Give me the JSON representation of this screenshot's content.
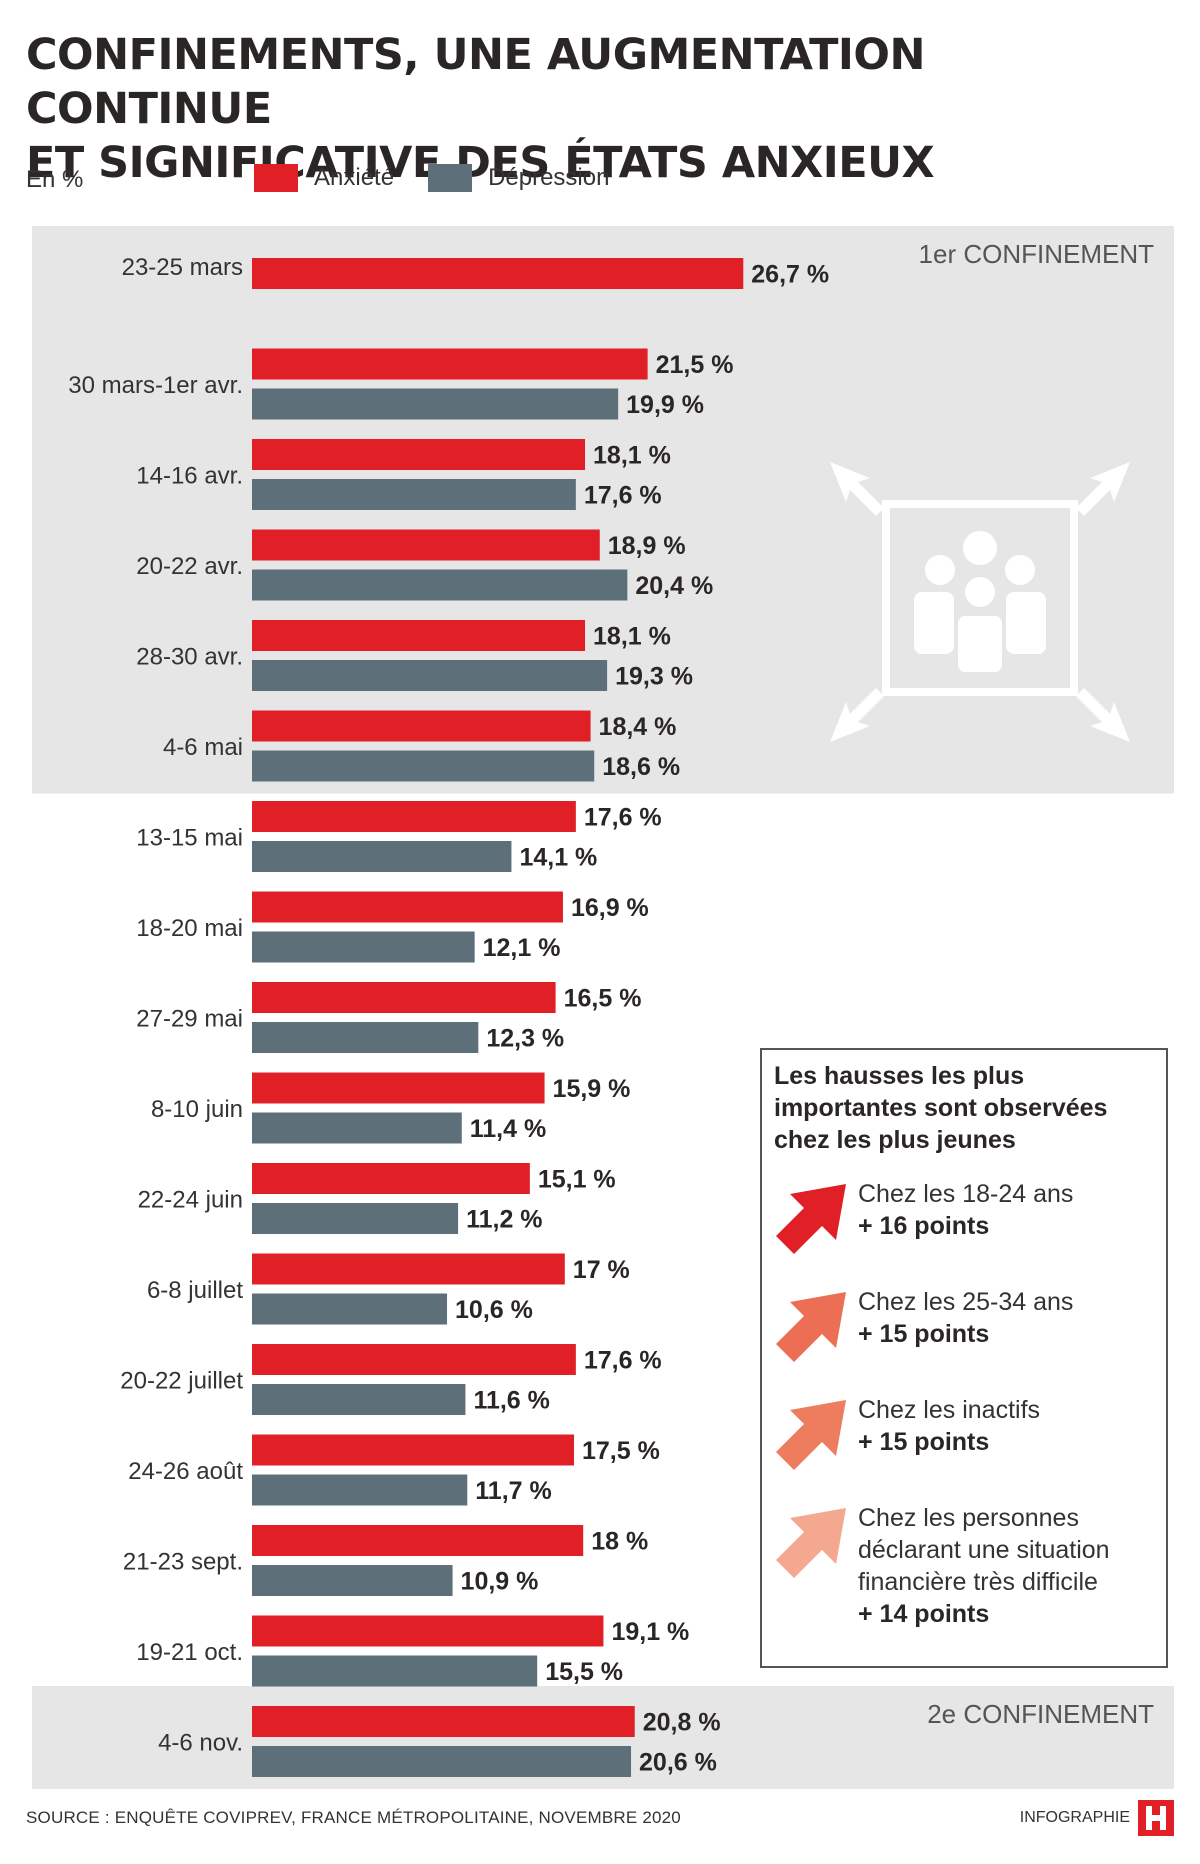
{
  "title_lines": [
    "CONFINEMENTS, UNE AUGMENTATION CONTINUE",
    "ET SIGNIFICATIVE DES ÉTATS ANXIEUX"
  ],
  "unit_label": "En %",
  "colors": {
    "anxiete": "#e01f26",
    "depression": "#5d7079",
    "band": "#e6e6e6",
    "text": "#2b2626"
  },
  "periods": [
    {
      "label": "1er CONFINEMENT",
      "from_category": "23-25 mars",
      "to_category": "4-6 mai"
    },
    {
      "label": "2e CONFINEMENT",
      "from_category": "4-6 nov.",
      "to_category": "4-6 nov."
    }
  ],
  "chart_data": {
    "type": "bar",
    "orientation": "horizontal",
    "unit": "%",
    "categories": [
      "23-25 mars",
      "30 mars-1er avr.",
      "14-16 avr.",
      "20-22 avr.",
      "28-30 avr.",
      "4-6 mai",
      "13-15 mai",
      "18-20 mai",
      "27-29 mai",
      "8-10 juin",
      "22-24 juin",
      "6-8 juillet",
      "20-22 juillet",
      "24-26 août",
      "21-23 sept.",
      "19-21 oct.",
      "4-6 nov."
    ],
    "series": [
      {
        "name": "Anxiété",
        "color": "#e01f26",
        "values": [
          26.7,
          21.5,
          18.1,
          18.9,
          18.1,
          18.4,
          17.6,
          16.9,
          16.5,
          15.9,
          15.1,
          17.0,
          17.6,
          17.5,
          18.0,
          19.1,
          20.8
        ],
        "value_labels": [
          "26,7 %",
          "21,5 %",
          "18,1 %",
          "18,9 %",
          "18,1 %",
          "18,4 %",
          "17,6 %",
          "16,9 %",
          "16,5 %",
          "15,9 %",
          "15,1 %",
          "17 %",
          "17,6 %",
          "17,5 %",
          "18 %",
          "19,1 %",
          "20,8 %"
        ]
      },
      {
        "name": "Dépression",
        "color": "#5d7079",
        "values": [
          null,
          19.9,
          17.6,
          20.4,
          19.3,
          18.6,
          14.1,
          12.1,
          12.3,
          11.4,
          11.2,
          10.6,
          11.6,
          11.7,
          10.9,
          15.5,
          20.6
        ],
        "value_labels": [
          "",
          "19,9 %",
          "17,6 %",
          "20,4 %",
          "19,3 %",
          "18,6 %",
          "14,1 %",
          "12,1 %",
          "12,3 %",
          "11,4 %",
          "11,2 %",
          "10,6 %",
          "11,6 %",
          "11,7 %",
          "10,9 %",
          "15,5 %",
          "20,6 %"
        ]
      }
    ],
    "xlim": [
      0,
      30
    ],
    "legend": "top-left"
  },
  "highlights": {
    "heading": "Les hausses les plus importantes sont observées chez les plus jeunes",
    "items": [
      {
        "label": "Chez les 18-24 ans",
        "points": "+ 16 points",
        "color": "#e01f26"
      },
      {
        "label": "Chez les 25-34 ans",
        "points": "+ 15 points",
        "color": "#ec6f55"
      },
      {
        "label": "Chez les inactifs",
        "points": "+ 15 points",
        "color": "#ee7c5f"
      },
      {
        "label": "Chez les personnes déclarant une situation financière très difficile",
        "points": "+ 14 points",
        "color": "#f4a88f"
      }
    ]
  },
  "source": "SOURCE : ENQUÊTE COVIPREV, FRANCE MÉTROPOLITAINE, NOVEMBRE 2020",
  "credit": "INFOGRAPHIE",
  "icons": {
    "confinement": "people-confinement-icon",
    "arrow": "up-right-arrow-icon",
    "logo": "h-logo-icon"
  }
}
